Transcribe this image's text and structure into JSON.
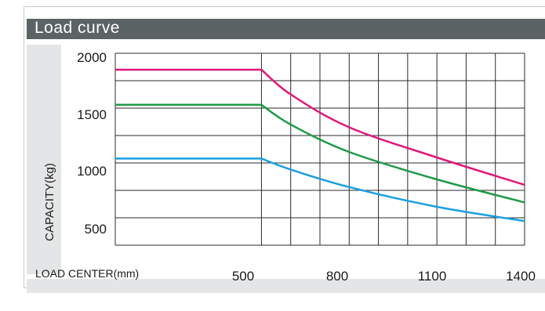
{
  "header": {
    "title": "Load curve"
  },
  "chart_data": {
    "type": "line",
    "title": "Load curve",
    "xlabel": "LOAD CENTER(mm)",
    "ylabel": "CAPACITY(kg)",
    "xlim": [
      0,
      1400
    ],
    "ylim": [
      250,
      2000
    ],
    "x_ticks": [
      "500",
      "800",
      "1100",
      "1400"
    ],
    "y_ticks": [
      "2000",
      "1500",
      "1000",
      "500"
    ],
    "grid": true,
    "legend": "none",
    "series": [
      {
        "color": "#e0187a",
        "x": [
          0,
          500,
          600,
          800,
          1100,
          1400
        ],
        "y": [
          1850,
          1850,
          1625,
          1325,
          1050,
          800
        ]
      },
      {
        "color": "#1f9a48",
        "x": [
          0,
          500,
          600,
          800,
          1100,
          1400
        ],
        "y": [
          1530,
          1530,
          1350,
          1100,
          850,
          640
        ]
      },
      {
        "color": "#1a9fe0",
        "x": [
          0,
          500,
          600,
          800,
          1100,
          1400
        ],
        "y": [
          1040,
          1040,
          940,
          780,
          600,
          470
        ]
      }
    ]
  }
}
